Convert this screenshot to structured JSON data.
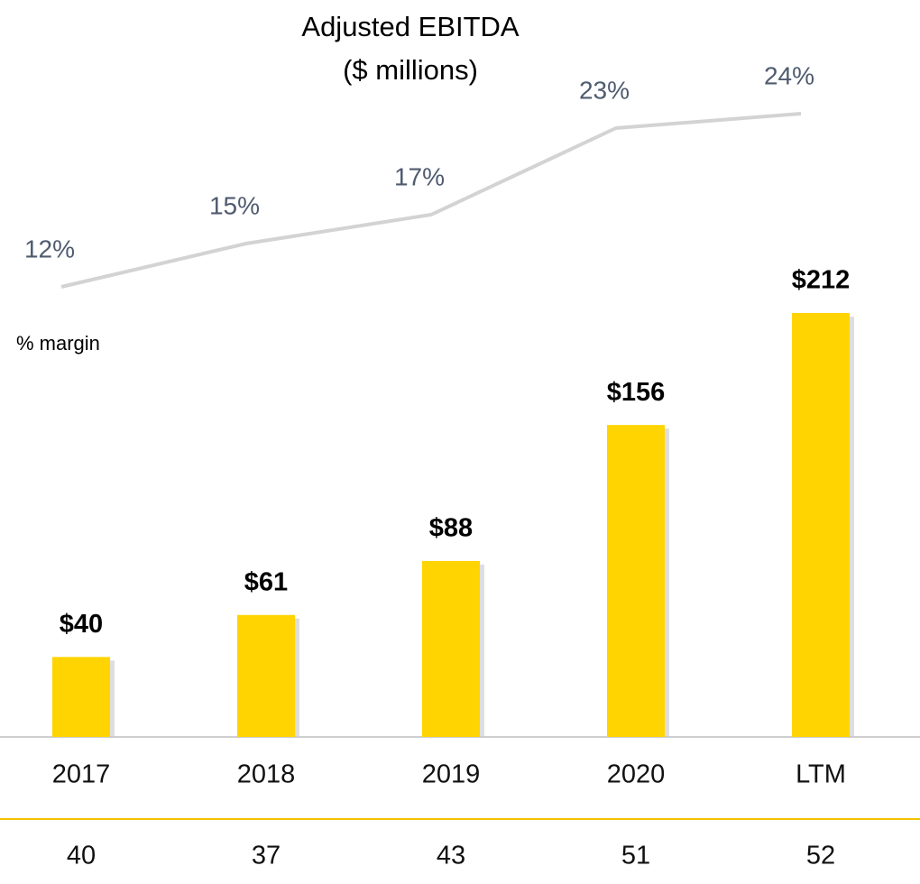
{
  "chart_data": {
    "type": "bar",
    "title": "Adjusted EBITDA",
    "subtitle": "($ millions)",
    "categories": [
      "2017",
      "2018",
      "2019",
      "2020",
      "LTM"
    ],
    "ylim": [
      0,
      212
    ],
    "y2lim": [
      0,
      30
    ],
    "series": [
      {
        "name": "Adjusted EBITDA",
        "type": "bar",
        "color": "#ffd400",
        "values": [
          40,
          61,
          88,
          156,
          212
        ],
        "value_labels": [
          "$40",
          "$61",
          "$88",
          "$156",
          "$212"
        ]
      },
      {
        "name": "% margin",
        "type": "line",
        "axis": "y2",
        "color": "#d3d3d3",
        "values": [
          12,
          15,
          17,
          23,
          24
        ],
        "value_labels": [
          "12%",
          "15%",
          "17%",
          "23%",
          "24%"
        ]
      }
    ],
    "bottom_row": [
      40,
      37,
      43,
      51,
      52
    ]
  }
}
